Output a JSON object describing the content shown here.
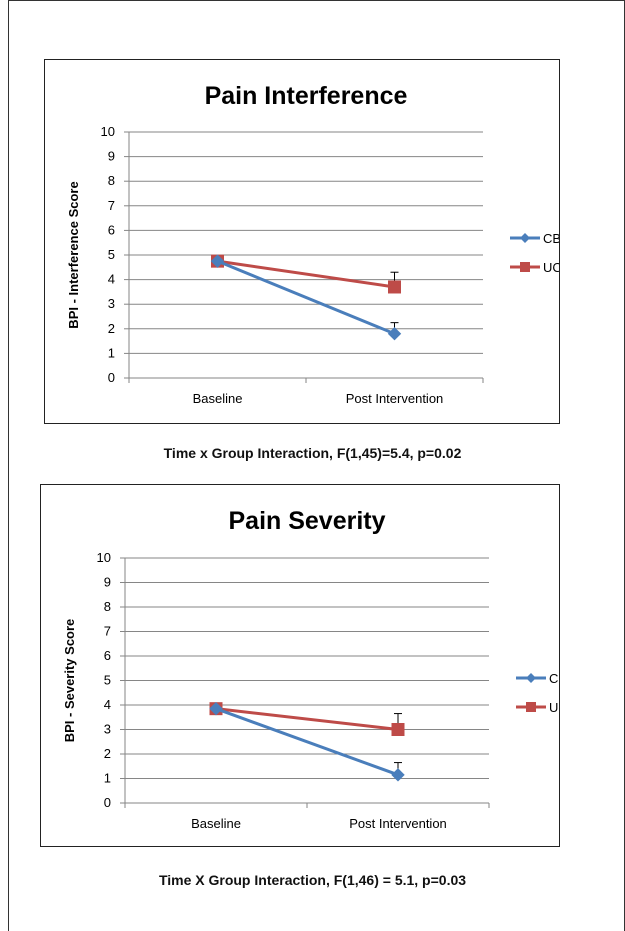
{
  "chart_data": [
    {
      "type": "line",
      "title": "Pain Interference",
      "ylabel": "BPI - Interference Score",
      "xlabel": "",
      "categories": [
        "Baseline",
        "Post Intervention"
      ],
      "ylim": [
        0,
        10
      ],
      "yticks": [
        "0",
        "1",
        "2",
        "3",
        "4",
        "5",
        "6",
        "7",
        "8",
        "9",
        "10"
      ],
      "grid": true,
      "legend": "right",
      "series": [
        {
          "name": "CBT",
          "values": [
            4.75,
            1.8
          ],
          "error_plus": [
            0,
            0.45
          ],
          "color": "#4a7ebb",
          "marker": "diamond"
        },
        {
          "name": "UC",
          "values": [
            4.75,
            3.7
          ],
          "error_plus": [
            0,
            0.6
          ],
          "color": "#be4b48",
          "marker": "square"
        }
      ],
      "caption": {
        "label": "Time x Group Interaction,",
        "stat": " F(1,45)=5.4, p=0.02"
      }
    },
    {
      "type": "line",
      "title": "Pain Severity",
      "ylabel": "BPI - Severity Score",
      "xlabel": "",
      "categories": [
        "Baseline",
        "Post Intervention"
      ],
      "ylim": [
        0,
        10
      ],
      "yticks": [
        "0",
        "1",
        "2",
        "3",
        "4",
        "5",
        "6",
        "7",
        "8",
        "9",
        "10"
      ],
      "grid": true,
      "legend": "right",
      "series": [
        {
          "name": "CBT",
          "values": [
            3.85,
            1.15
          ],
          "error_plus": [
            0,
            0.5
          ],
          "color": "#4a7ebb",
          "marker": "diamond"
        },
        {
          "name": "UC",
          "values": [
            3.85,
            3.0
          ],
          "error_plus": [
            0,
            0.65
          ],
          "color": "#be4b48",
          "marker": "square"
        }
      ],
      "caption": {
        "label": "Time X Group Interaction,",
        "stat": " F(1,46) = 5.1, p=0.03"
      }
    }
  ]
}
